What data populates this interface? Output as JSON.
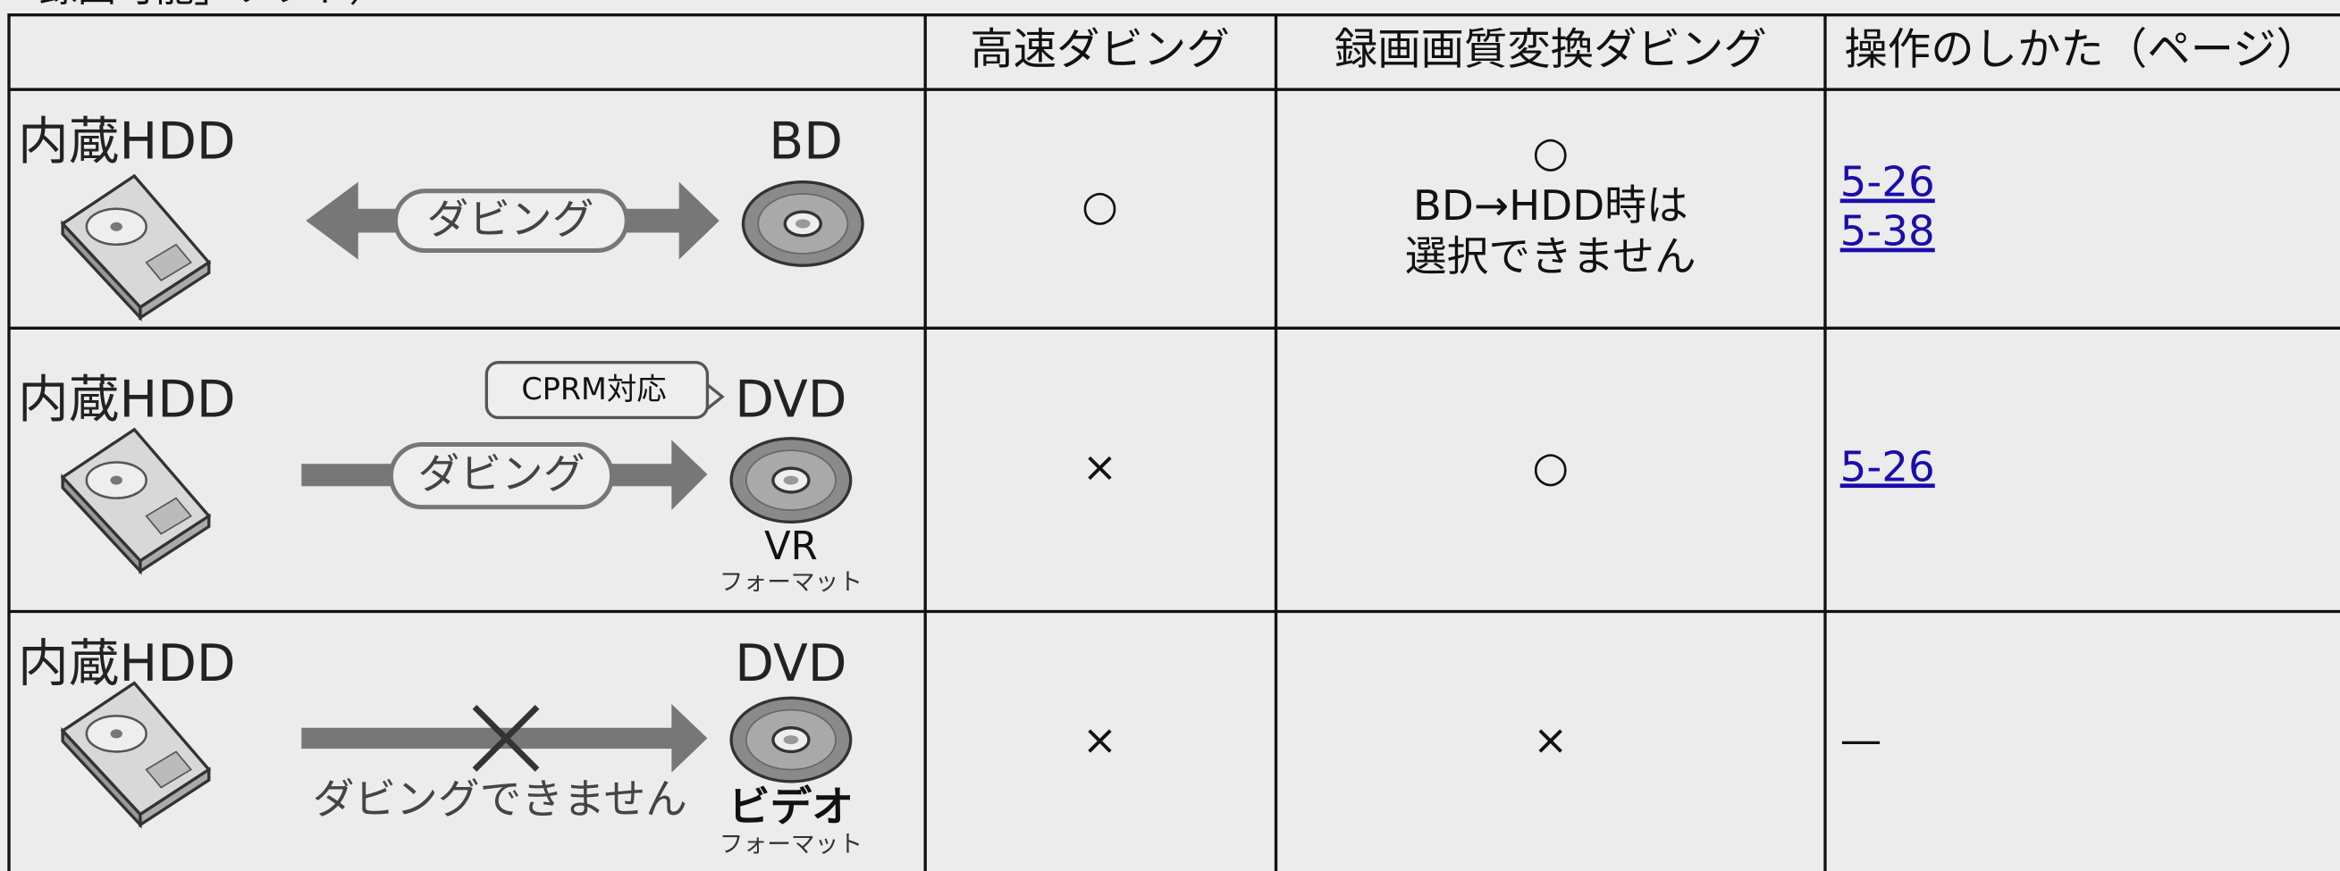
{
  "caption": "「録画可能」ソフト）",
  "table": {
    "header": [
      "高速ダビング",
      "録画画質変換ダビング",
      "操作のしかた（ページ）"
    ],
    "rows": [
      {
        "diagram": {
          "source": "内蔵HDD",
          "target": "BD",
          "arrow_label": "ダビング"
        },
        "high_speed": "○",
        "conversion": [
          "○",
          "BD→HDD時は",
          "選択できません"
        ],
        "pages": [
          "5-26",
          "5-38"
        ]
      },
      {
        "diagram": {
          "source": "内蔵HDD",
          "target": "DVD",
          "badge": "CPRM対応",
          "arrow_label": "ダビング",
          "format": "VR",
          "format_note": "フォーマット"
        },
        "high_speed": "×",
        "conversion": [
          "○"
        ],
        "pages": [
          "5-26"
        ]
      },
      {
        "diagram": {
          "source": "内蔵HDD",
          "target": "DVD",
          "arrow_label": "ダビングできません",
          "format": "ビデオ",
          "format_note": "フォーマット"
        },
        "high_speed": "×",
        "conversion": [
          "×"
        ],
        "operation": "—"
      }
    ]
  }
}
